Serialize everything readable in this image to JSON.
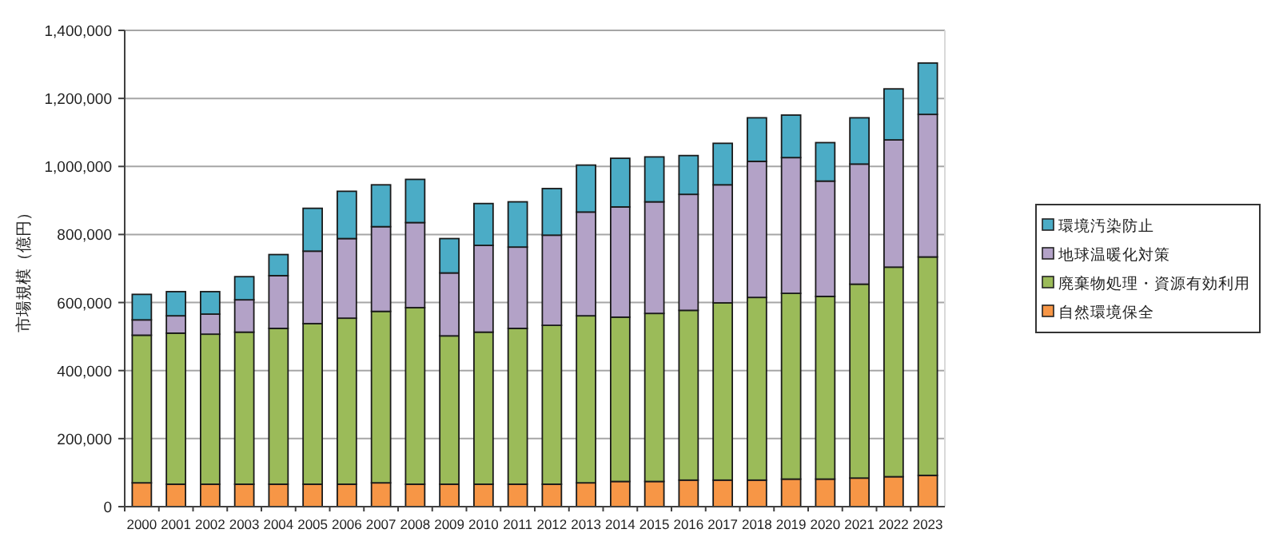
{
  "chart_data": {
    "type": "bar",
    "stacked": true,
    "ylabel": "市場規模（億円）",
    "categories": [
      "2000",
      "2001",
      "2002",
      "2003",
      "2004",
      "2005",
      "2006",
      "2007",
      "2008",
      "2009",
      "2010",
      "2011",
      "2012",
      "2013",
      "2014",
      "2015",
      "2016",
      "2017",
      "2018",
      "2019",
      "2020",
      "2021",
      "2022",
      "2023"
    ],
    "series": [
      {
        "name": "自然環境保全",
        "color": "#f79646",
        "values": [
          70000,
          66000,
          66000,
          66000,
          66000,
          66000,
          66000,
          70000,
          66000,
          66000,
          66000,
          66000,
          66000,
          70000,
          74000,
          74000,
          78000,
          78000,
          78000,
          81000,
          81000,
          84000,
          88000,
          92000
        ]
      },
      {
        "name": "廃棄物処理・資源有効利用",
        "color": "#9bbb59",
        "values": [
          434000,
          444000,
          441000,
          447000,
          458000,
          472000,
          488000,
          504000,
          519000,
          436000,
          447000,
          458000,
          467000,
          491000,
          483000,
          494000,
          499000,
          521000,
          537000,
          546000,
          537000,
          570000,
          616000,
          642000
        ]
      },
      {
        "name": "地球温暖化対策",
        "color": "#b3a2c7",
        "values": [
          45000,
          51000,
          59000,
          95000,
          155000,
          213000,
          234000,
          249000,
          250000,
          185000,
          255000,
          239000,
          265000,
          305000,
          324000,
          328000,
          341000,
          347000,
          400000,
          399000,
          339000,
          353000,
          374000,
          419000
        ]
      },
      {
        "name": "環境汚染防止",
        "color": "#4bacc6",
        "values": [
          75000,
          71000,
          66000,
          68000,
          62000,
          126000,
          139000,
          123000,
          127000,
          101000,
          123000,
          133000,
          137000,
          138000,
          143000,
          132000,
          114000,
          122000,
          128000,
          125000,
          113000,
          136000,
          150000,
          151000
        ]
      }
    ],
    "ylim": [
      0,
      1400000
    ],
    "yticks": [
      {
        "value": 0,
        "label": "0"
      },
      {
        "value": 200000,
        "label": "200,000"
      },
      {
        "value": 400000,
        "label": "400,000"
      },
      {
        "value": 600000,
        "label": "600,000"
      },
      {
        "value": 800000,
        "label": "800,000"
      },
      {
        "value": 1000000,
        "label": "1,000,000"
      },
      {
        "value": 1200000,
        "label": "1,200,000"
      },
      {
        "value": 1400000,
        "label": "1,400,000"
      }
    ],
    "grid": "y",
    "legend": "right"
  }
}
